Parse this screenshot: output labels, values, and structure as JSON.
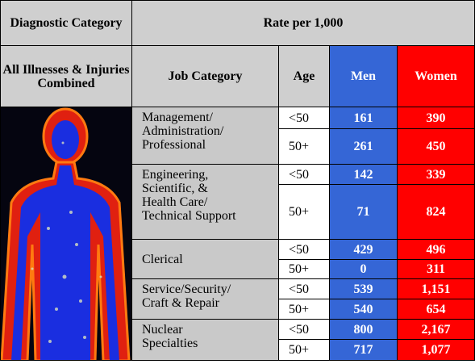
{
  "header": {
    "category": "Diagnostic Category",
    "rate": "Rate per 1,000"
  },
  "columns": {
    "combined": "All Illnesses & Injuries Combined",
    "job": "Job Category",
    "age": "Age",
    "men": "Men",
    "women": "Women"
  },
  "rows": [
    {
      "job": "Management/\nAdministration/\nProfessional",
      "entries": [
        {
          "age": "<50",
          "men": "161",
          "women": "390"
        },
        {
          "age": "50+",
          "men": "261",
          "women": "450"
        }
      ]
    },
    {
      "job": "Engineering,\nScientific, &\nHealth Care/\nTechnical Support",
      "entries": [
        {
          "age": "<50",
          "men": "142",
          "women": "339"
        },
        {
          "age": "50+",
          "men": "71",
          "women": "824"
        }
      ]
    },
    {
      "job": "Clerical",
      "entries": [
        {
          "age": "<50",
          "men": "429",
          "women": "496"
        },
        {
          "age": "50+",
          "men": "0",
          "women": "311"
        }
      ]
    },
    {
      "job": "Service/Security/\nCraft & Repair",
      "entries": [
        {
          "age": "<50",
          "men": "539",
          "women": "1,151"
        },
        {
          "age": "50+",
          "men": "540",
          "women": "654"
        }
      ]
    },
    {
      "job": "Nuclear\nSpecialties",
      "entries": [
        {
          "age": "<50",
          "men": "800",
          "women": "2,167"
        },
        {
          "age": "50+",
          "men": "717",
          "women": "1,077"
        }
      ]
    }
  ]
}
